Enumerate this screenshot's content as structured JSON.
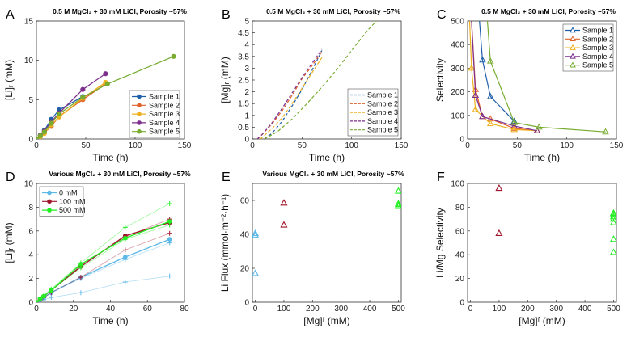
{
  "chart_data": [
    {
      "id": "A",
      "type": "line",
      "panel_label": "A",
      "title": "0.5 M MgCl₂ + 30 mM LiCl, Porosity ~57%",
      "xlabel": "Time (h)",
      "ylabel": "[Li]ᵣ (mM)",
      "xlim": [
        0,
        150
      ],
      "ylim": [
        0,
        15
      ],
      "xticks": [
        0,
        50,
        100,
        150
      ],
      "yticks": [
        0,
        5,
        10,
        15
      ],
      "xtick_labels": [
        "0",
        "50",
        "100",
        "150"
      ],
      "ytick_labels": [
        "0",
        "5",
        "10",
        "15"
      ],
      "legend_position": "center-right",
      "series": [
        {
          "name": "Sample 1",
          "color": "#1f5fa8",
          "style": "solid-marker",
          "x": [
            0,
            4,
            8,
            15,
            23,
            47
          ],
          "y": [
            0,
            0.5,
            1.1,
            2.5,
            3.7,
            5.4
          ]
        },
        {
          "name": "Sample 2",
          "color": "#e0622a",
          "style": "solid-marker",
          "x": [
            0,
            4,
            8,
            15,
            23,
            47,
            70
          ],
          "y": [
            0,
            0.4,
            0.8,
            1.6,
            2.9,
            5.0,
            7.0
          ]
        },
        {
          "name": "Sample 3",
          "color": "#edb120",
          "style": "solid-marker",
          "x": [
            0,
            4,
            8,
            15,
            23,
            47,
            70
          ],
          "y": [
            0,
            0.3,
            0.7,
            1.8,
            2.8,
            5.2,
            7.2
          ]
        },
        {
          "name": "Sample 4",
          "color": "#7e2f8e",
          "style": "solid-marker",
          "x": [
            0,
            4,
            8,
            15,
            23,
            47,
            70
          ],
          "y": [
            0,
            0.5,
            1.0,
            2.2,
            3.3,
            6.3,
            8.3
          ]
        },
        {
          "name": "Sample 5",
          "color": "#77ac30",
          "style": "solid-marker",
          "x": [
            0,
            4,
            8,
            15,
            23,
            47,
            72,
            139
          ],
          "y": [
            0,
            0.4,
            0.9,
            2.0,
            3.2,
            5.3,
            7.0,
            10.5
          ]
        }
      ]
    },
    {
      "id": "B",
      "type": "line",
      "panel_label": "B",
      "title": "0.5 M MgCl₂ + 30 mM LiCl, Porosity ~57%",
      "xlabel": "Time (h)",
      "ylabel": "[Mg]ᵣ (mM)",
      "xlim": [
        0,
        150
      ],
      "ylim": [
        0,
        5
      ],
      "xticks": [
        0,
        50,
        100,
        150
      ],
      "yticks": [
        0,
        0.5,
        1,
        1.5,
        2,
        2.5,
        3,
        3.5,
        4,
        4.5,
        5
      ],
      "xtick_labels": [
        "0",
        "50",
        "100",
        "150"
      ],
      "ytick_labels": [
        "0",
        "0.5",
        "1",
        "1.5",
        "2",
        "2.5",
        "3",
        "3.5",
        "4",
        "4.5",
        "5"
      ],
      "legend_position": "bottom-right",
      "series": [
        {
          "name": "Sample 1",
          "color": "#1f5fa8",
          "style": "dashed",
          "x": [
            12,
            20,
            30,
            40,
            50,
            60,
            70
          ],
          "y": [
            0,
            0.25,
            0.75,
            1.4,
            2.1,
            2.9,
            3.75
          ]
        },
        {
          "name": "Sample 2",
          "color": "#e0622a",
          "style": "dashed",
          "x": [
            5,
            10,
            20,
            30,
            40,
            50,
            60,
            70
          ],
          "y": [
            0,
            0.2,
            0.65,
            1.2,
            1.85,
            2.55,
            3.1,
            3.7
          ]
        },
        {
          "name": "Sample 3",
          "color": "#edb120",
          "style": "dashed",
          "x": [
            8,
            20,
            30,
            40,
            50,
            60,
            70
          ],
          "y": [
            0,
            0.45,
            0.9,
            1.5,
            2.15,
            2.8,
            3.45
          ]
        },
        {
          "name": "Sample 4",
          "color": "#7e2f8e",
          "style": "dashed",
          "x": [
            5,
            10,
            20,
            30,
            40,
            50,
            60,
            70
          ],
          "y": [
            0,
            0.2,
            0.7,
            1.3,
            1.95,
            2.6,
            3.2,
            3.8
          ]
        },
        {
          "name": "Sample 5",
          "color": "#77ac30",
          "style": "dashed",
          "x": [
            12,
            25,
            40,
            55,
            70,
            85,
            100,
            115,
            125
          ],
          "y": [
            0,
            0.3,
            0.85,
            1.5,
            2.2,
            2.95,
            3.75,
            4.55,
            5.0
          ]
        }
      ]
    },
    {
      "id": "C",
      "type": "line",
      "panel_label": "C",
      "title": "0.5 M MgCl₂ + 30 mM LiCl, Porosity ~57%",
      "xlabel": "Time (h)",
      "ylabel": "Selectivity",
      "xlim": [
        0,
        150
      ],
      "ylim": [
        0,
        500
      ],
      "xticks": [
        0,
        50,
        100,
        150
      ],
      "yticks": [
        0,
        100,
        200,
        300,
        400,
        500
      ],
      "xtick_labels": [
        "0",
        "50",
        "100",
        "150"
      ],
      "ytick_labels": [
        "0",
        "100",
        "200",
        "300",
        "400",
        "500"
      ],
      "legend_position": "top-right",
      "series": [
        {
          "name": "Sample 1",
          "color": "#1f5fa8",
          "style": "triangle-line",
          "x": [
            12,
            15,
            23,
            47
          ],
          "y": [
            500,
            335,
            180,
            75
          ]
        },
        {
          "name": "Sample 2",
          "color": "#e0622a",
          "style": "triangle-line",
          "x": [
            4,
            8,
            15,
            23,
            47,
            70
          ],
          "y": [
            500,
            210,
            95,
            85,
            45,
            35
          ]
        },
        {
          "name": "Sample 3",
          "color": "#edb120",
          "style": "triangle-line",
          "x": [
            2,
            4,
            8,
            23,
            47,
            70
          ],
          "y": [
            500,
            300,
            125,
            65,
            40,
            35
          ]
        },
        {
          "name": "Sample 4",
          "color": "#7e2f8e",
          "style": "triangle-line",
          "x": [
            4,
            8,
            15,
            47,
            70
          ],
          "y": [
            500,
            185,
            95,
            55,
            35
          ]
        },
        {
          "name": "Sample 5",
          "color": "#77ac30",
          "style": "triangle-line",
          "x": [
            20,
            23,
            47,
            72,
            139
          ],
          "y": [
            500,
            330,
            70,
            50,
            30
          ]
        }
      ]
    },
    {
      "id": "D",
      "type": "line",
      "panel_label": "D",
      "title": "Various MgCl₂ + 30 mM LiCl, Porosity ~57%",
      "xlabel": "Time (h)",
      "ylabel": "[Li]ᵣ (mM)",
      "xlim": [
        0,
        80
      ],
      "ylim": [
        0,
        10
      ],
      "xticks": [
        0,
        20,
        40,
        60,
        80
      ],
      "yticks": [
        0,
        2,
        4,
        6,
        8,
        10
      ],
      "xtick_labels": [
        "0",
        "20",
        "40",
        "60",
        "80"
      ],
      "ytick_labels": [
        "0",
        "2",
        "4",
        "6",
        "8",
        "10"
      ],
      "legend_position": "top-left",
      "legend": [
        {
          "name": "0 mM",
          "color": "#5bb8e8"
        },
        {
          "name": "100 mM",
          "color": "#a0152b"
        },
        {
          "name": "500 mM",
          "color": "#22ee22"
        }
      ],
      "series": [
        {
          "name": "0 mM",
          "color": "#5bb8e8",
          "style": "circle-line",
          "x": [
            0,
            2,
            4,
            8,
            24,
            48,
            72
          ],
          "y": [
            0,
            0.2,
            0.4,
            0.8,
            2.1,
            3.8,
            5.3
          ]
        },
        {
          "name": "0 mM plus 1",
          "color": "#5bb8e8",
          "style": "plus-thin",
          "x": [
            0,
            2,
            4,
            8,
            24,
            48,
            72
          ],
          "y": [
            0,
            0.1,
            0.2,
            0.4,
            0.8,
            1.7,
            2.2
          ]
        },
        {
          "name": "0 mM plus 2",
          "color": "#5bb8e8",
          "style": "plus-thin",
          "x": [
            0,
            2,
            4,
            8,
            24,
            48,
            72
          ],
          "y": [
            0,
            0.2,
            0.4,
            0.8,
            2.0,
            3.6,
            5.0
          ]
        },
        {
          "name": "100 mM",
          "color": "#a0152b",
          "style": "circle-line",
          "x": [
            0,
            2,
            4,
            8,
            24,
            48,
            72
          ],
          "y": [
            0,
            0.3,
            0.5,
            1.0,
            3.0,
            5.6,
            6.7
          ]
        },
        {
          "name": "100 mM plus 1",
          "color": "#a0152b",
          "style": "plus-thin",
          "x": [
            0,
            2,
            4,
            8,
            24,
            48,
            72
          ],
          "y": [
            0,
            0.2,
            0.4,
            0.8,
            2.1,
            4.4,
            5.8
          ]
        },
        {
          "name": "100 mM plus 2",
          "color": "#a0152b",
          "style": "plus-thin",
          "x": [
            0,
            2,
            4,
            8,
            24,
            48,
            72
          ],
          "y": [
            0,
            0.3,
            0.5,
            1.0,
            3.1,
            5.5,
            7.0
          ]
        },
        {
          "name": "500 mM",
          "color": "#22ee22",
          "style": "circle-line",
          "x": [
            0,
            2,
            4,
            8,
            24,
            48,
            72
          ],
          "y": [
            0,
            0.3,
            0.5,
            1.0,
            3.2,
            5.4,
            6.8
          ]
        },
        {
          "name": "500 mM plus 1",
          "color": "#22ee22",
          "style": "plus-thin",
          "x": [
            0,
            2,
            4,
            8,
            24,
            48,
            72
          ],
          "y": [
            0,
            0.4,
            0.6,
            1.1,
            3.3,
            6.3,
            8.3
          ]
        },
        {
          "name": "500 mM plus 2",
          "color": "#22ee22",
          "style": "plus-thin",
          "x": [
            0,
            2,
            4,
            8,
            24,
            48,
            72
          ],
          "y": [
            0,
            0.3,
            0.5,
            1.0,
            2.9,
            5.3,
            6.5
          ]
        }
      ]
    },
    {
      "id": "E",
      "type": "scatter",
      "panel_label": "E",
      "title": "Various MgCl₂ + 30 mM LiCl, Porosity ~57%",
      "xlabel": "[Mg]ᶠ (mM)",
      "ylabel": "Li Flux (mmol·m⁻²·h⁻¹)",
      "xlim": [
        -10,
        510
      ],
      "ylim": [
        0,
        70
      ],
      "xticks": [
        0,
        100,
        200,
        300,
        400,
        500
      ],
      "yticks": [
        0,
        20,
        40,
        60
      ],
      "xtick_labels": [
        "0",
        "100",
        "200",
        "300",
        "400",
        "500"
      ],
      "ytick_labels": [
        "0",
        "20",
        "40",
        "60"
      ],
      "series": [
        {
          "name": "0 mM",
          "color": "#5bb8e8",
          "style": "triangle",
          "x": [
            0,
            0,
            0
          ],
          "y": [
            17,
            39.5,
            40.5
          ]
        },
        {
          "name": "100 mM",
          "color": "#a0152b",
          "style": "triangle",
          "x": [
            100,
            100
          ],
          "y": [
            45.5,
            58.5
          ]
        },
        {
          "name": "500 mM",
          "color": "#22ee22",
          "style": "triangle",
          "x": [
            500,
            500,
            500,
            500
          ],
          "y": [
            56.5,
            57.5,
            58,
            65.5
          ]
        }
      ]
    },
    {
      "id": "F",
      "type": "scatter",
      "panel_label": "F",
      "xlabel": "[Mg]ᶠ (mM)",
      "ylabel": "Li/Mg Selectivity",
      "xlim": [
        -10,
        510
      ],
      "ylim": [
        0,
        100
      ],
      "xticks": [
        0,
        100,
        200,
        300,
        400,
        500
      ],
      "yticks": [
        0,
        20,
        40,
        60,
        80,
        100
      ],
      "xtick_labels": [
        "0",
        "100",
        "200",
        "300",
        "400",
        "500"
      ],
      "ytick_labels": [
        "0",
        "20",
        "40",
        "60",
        "80",
        "100"
      ],
      "series": [
        {
          "name": "100 mM",
          "color": "#a0152b",
          "style": "triangle",
          "x": [
            100,
            100
          ],
          "y": [
            58,
            96
          ]
        },
        {
          "name": "500 mM",
          "color": "#22ee22",
          "style": "triangle",
          "x": [
            500,
            500,
            500,
            500,
            500,
            500,
            500
          ],
          "y": [
            42,
            53,
            67,
            70,
            72,
            74,
            75
          ]
        }
      ]
    }
  ]
}
